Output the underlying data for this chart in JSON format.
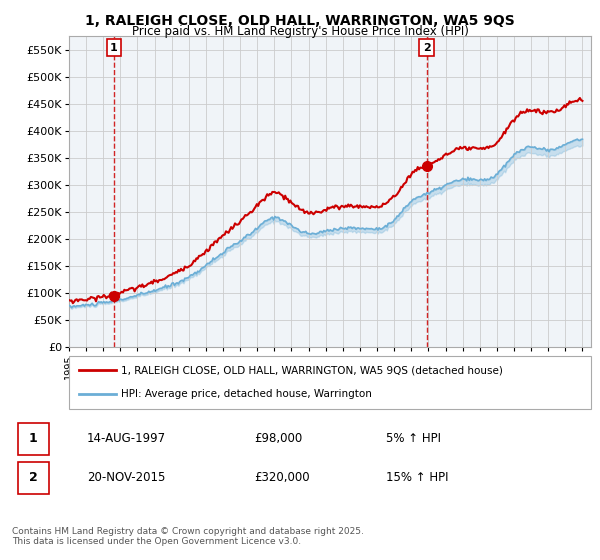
{
  "title_line1": "1, RALEIGH CLOSE, OLD HALL, WARRINGTON, WA5 9QS",
  "title_line2": "Price paid vs. HM Land Registry's House Price Index (HPI)",
  "ylabel": "",
  "xlabel": "",
  "ylim": [
    0,
    575000
  ],
  "yticks": [
    0,
    50000,
    100000,
    150000,
    200000,
    250000,
    300000,
    350000,
    400000,
    450000,
    500000,
    550000
  ],
  "ytick_labels": [
    "£0",
    "£50K",
    "£100K",
    "£150K",
    "£200K",
    "£250K",
    "£300K",
    "£350K",
    "£400K",
    "£450K",
    "£500K",
    "£550K"
  ],
  "sale1_date": 1997.617,
  "sale1_price": 98000,
  "sale1_label": "14-AUG-1997",
  "sale1_pct": "5% ↑ HPI",
  "sale2_date": 2015.896,
  "sale2_price": 320000,
  "sale2_label": "20-NOV-2015",
  "sale2_pct": "15% ↑ HPI",
  "hpi_color": "#6baed6",
  "price_color": "#cc0000",
  "vline_color": "#cc0000",
  "marker_color": "#cc0000",
  "grid_color": "#cccccc",
  "background_color": "#f0f4f8",
  "plot_bg_color": "#f0f4f8",
  "legend_label_price": "1, RALEIGH CLOSE, OLD HALL, WARRINGTON, WA5 9QS (detached house)",
  "legend_label_hpi": "HPI: Average price, detached house, Warrington",
  "footnote": "Contains HM Land Registry data © Crown copyright and database right 2025.\nThis data is licensed under the Open Government Licence v3.0.",
  "table_entries": [
    {
      "num": "1",
      "date": "14-AUG-1997",
      "price": "£98,000",
      "pct": "5% ↑ HPI"
    },
    {
      "num": "2",
      "date": "20-NOV-2015",
      "price": "£320,000",
      "pct": "15% ↑ HPI"
    }
  ]
}
